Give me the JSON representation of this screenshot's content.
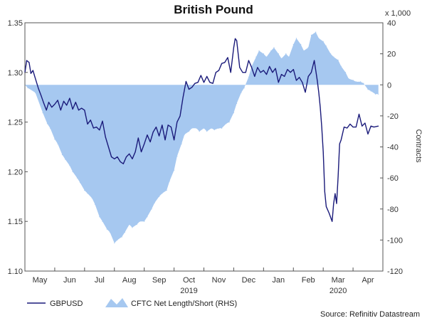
{
  "chart_data": {
    "type": "line",
    "title": "British Pound",
    "source": "Source: Refinitiv Datastream",
    "left_axis": {
      "range": [
        1.1,
        1.35
      ],
      "ticks": [
        1.1,
        1.15,
        1.2,
        1.25,
        1.3,
        1.35
      ],
      "tick_labels": [
        "1.10",
        "1.15",
        "1.20",
        "1.25",
        "1.30",
        "1.35"
      ]
    },
    "right_axis": {
      "label": "Contracts",
      "multiplier": "x 1,000",
      "range": [
        -120,
        40
      ],
      "ticks": [
        -120,
        -100,
        -80,
        -60,
        -40,
        -20,
        0,
        20,
        40
      ],
      "tick_labels": [
        "-120",
        "-100",
        "-80",
        "-60",
        "-40",
        "-20",
        "0",
        "20",
        "40"
      ]
    },
    "x_axis": {
      "months": [
        "May",
        "Jun",
        "Jul",
        "Aug",
        "Sep",
        "Oct",
        "Nov",
        "Dec",
        "Jan",
        "Feb",
        "Mar",
        "Apr"
      ],
      "years": [
        {
          "label": "2019",
          "month_index": 5
        },
        {
          "label": "2020",
          "month_index": 10
        }
      ]
    },
    "legend": [
      "GBPUSD",
      "CFTC Net Length/Short (RHS)"
    ],
    "colors": {
      "gbpusd": "#1a1a7a",
      "cftc": "#a6c8f0",
      "frame": "#555555"
    },
    "series": [
      {
        "name": "GBPUSD",
        "axis": "left",
        "t": [
          0.0,
          0.06,
          0.14,
          0.2,
          0.27,
          0.33,
          0.45,
          0.55,
          0.62,
          0.72,
          0.8,
          0.9,
          1.0,
          1.1,
          1.2,
          1.3,
          1.4,
          1.5,
          1.6,
          1.7,
          1.8,
          1.9,
          2.0,
          2.1,
          2.2,
          2.3,
          2.4,
          2.5,
          2.6,
          2.7,
          2.8,
          2.9,
          3.0,
          3.1,
          3.2,
          3.3,
          3.4,
          3.5,
          3.6,
          3.7,
          3.8,
          3.9,
          4.0,
          4.1,
          4.2,
          4.3,
          4.4,
          4.5,
          4.6,
          4.7,
          4.8,
          4.9,
          5.0,
          5.1,
          5.2,
          5.3,
          5.4,
          5.5,
          5.6,
          5.7,
          5.8,
          5.9,
          6.0,
          6.1,
          6.2,
          6.3,
          6.4,
          6.5,
          6.6,
          6.7,
          6.8,
          6.9,
          7.0,
          7.05,
          7.1,
          7.2,
          7.3,
          7.4,
          7.5,
          7.6,
          7.7,
          7.8,
          7.9,
          8.0,
          8.1,
          8.2,
          8.3,
          8.4,
          8.5,
          8.6,
          8.7,
          8.8,
          8.9,
          9.0,
          9.1,
          9.2,
          9.3,
          9.4,
          9.5,
          9.6,
          9.7,
          9.8,
          9.85,
          9.9,
          9.95,
          10.0,
          10.05,
          10.1,
          10.2,
          10.3,
          10.35,
          10.4,
          10.45,
          10.5,
          10.55,
          10.6,
          10.7,
          10.8,
          10.9,
          11.0,
          11.1,
          11.2,
          11.3,
          11.4,
          11.5,
          11.6,
          11.7,
          11.85
        ],
        "values": [
          1.3,
          1.312,
          1.31,
          1.299,
          1.302,
          1.296,
          1.284,
          1.276,
          1.27,
          1.262,
          1.27,
          1.265,
          1.268,
          1.272,
          1.262,
          1.271,
          1.267,
          1.274,
          1.263,
          1.27,
          1.262,
          1.264,
          1.262,
          1.248,
          1.252,
          1.244,
          1.245,
          1.242,
          1.251,
          1.235,
          1.225,
          1.215,
          1.213,
          1.215,
          1.21,
          1.208,
          1.215,
          1.218,
          1.213,
          1.22,
          1.234,
          1.22,
          1.228,
          1.237,
          1.23,
          1.24,
          1.245,
          1.236,
          1.247,
          1.232,
          1.247,
          1.245,
          1.232,
          1.25,
          1.256,
          1.275,
          1.291,
          1.283,
          1.285,
          1.289,
          1.29,
          1.297,
          1.29,
          1.296,
          1.29,
          1.289,
          1.3,
          1.302,
          1.309,
          1.31,
          1.315,
          1.3,
          1.325,
          1.334,
          1.332,
          1.305,
          1.3,
          1.3,
          1.312,
          1.305,
          1.296,
          1.305,
          1.3,
          1.302,
          1.298,
          1.306,
          1.3,
          1.304,
          1.29,
          1.298,
          1.296,
          1.303,
          1.3,
          1.303,
          1.292,
          1.295,
          1.29,
          1.28,
          1.296,
          1.3,
          1.312,
          1.292,
          1.28,
          1.265,
          1.245,
          1.22,
          1.18,
          1.165,
          1.158,
          1.15,
          1.168,
          1.178,
          1.168,
          1.195,
          1.228,
          1.232,
          1.245,
          1.244,
          1.248,
          1.245,
          1.245,
          1.258,
          1.246,
          1.249,
          1.238,
          1.246,
          1.245,
          1.246
        ]
      },
      {
        "name": "CFTC Net Length/Short (RHS)",
        "axis": "right",
        "t": [
          0.0,
          0.1,
          0.35,
          0.6,
          0.75,
          0.85,
          1.0,
          1.1,
          1.25,
          1.35,
          1.5,
          1.6,
          1.75,
          1.85,
          2.0,
          2.1,
          2.25,
          2.35,
          2.5,
          2.6,
          2.75,
          2.85,
          3.0,
          3.1,
          3.25,
          3.35,
          3.5,
          3.6,
          3.75,
          3.85,
          4.0,
          4.1,
          4.25,
          4.35,
          4.5,
          4.6,
          4.75,
          4.85,
          5.0,
          5.1,
          5.25,
          5.35,
          5.5,
          5.6,
          5.75,
          5.85,
          6.0,
          6.1,
          6.25,
          6.35,
          6.5,
          6.6,
          6.75,
          6.85,
          7.0,
          7.1,
          7.25,
          7.35,
          7.5,
          7.6,
          7.75,
          7.85,
          8.0,
          8.1,
          8.25,
          8.35,
          8.5,
          8.6,
          8.75,
          8.85,
          9.0,
          9.1,
          9.25,
          9.35,
          9.5,
          9.6,
          9.75,
          9.85,
          10.0,
          10.1,
          10.25,
          10.35,
          10.5,
          10.6,
          10.75,
          10.85,
          11.0,
          11.1,
          11.25,
          11.35,
          11.5,
          11.6,
          11.75,
          11.85
        ],
        "values": [
          0,
          -2,
          -5,
          -18,
          -25,
          -28,
          -35,
          -38,
          -45,
          -48,
          -52,
          -56,
          -60,
          -63,
          -68,
          -70,
          -73,
          -77,
          -85,
          -88,
          -93,
          -95,
          -102,
          -100,
          -98,
          -95,
          -90,
          -92,
          -90,
          -88,
          -88,
          -85,
          -80,
          -76,
          -72,
          -70,
          -68,
          -62,
          -55,
          -46,
          -38,
          -32,
          -30,
          -28,
          -28,
          -30,
          -28,
          -30,
          -28,
          -29,
          -28,
          -28,
          -25,
          -24,
          -18,
          -12,
          -5,
          -2,
          5,
          12,
          18,
          22,
          20,
          18,
          22,
          24,
          20,
          17,
          20,
          18,
          26,
          30,
          26,
          22,
          24,
          32,
          34,
          30,
          28,
          25,
          20,
          18,
          16,
          12,
          8,
          4,
          3,
          2,
          2,
          1,
          -3,
          -4,
          -6,
          -6
        ]
      }
    ]
  }
}
